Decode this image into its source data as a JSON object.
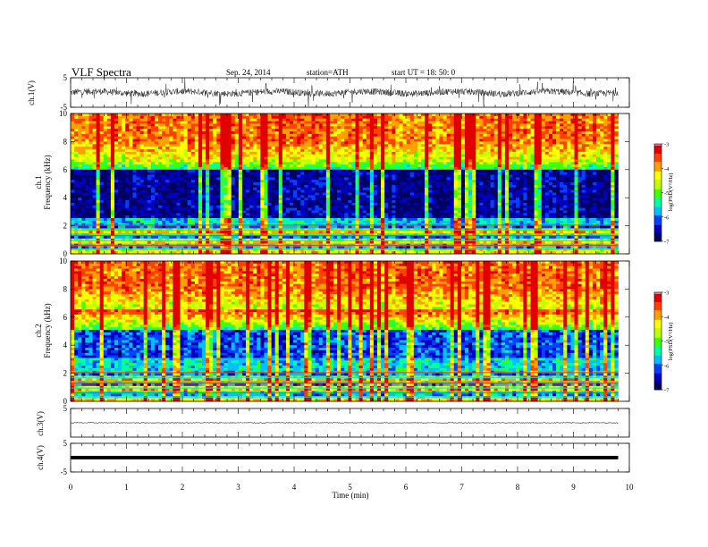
{
  "header": {
    "title": "VLF  Spectra",
    "date": "Sep. 24, 2014",
    "station": "station=ATH",
    "start": "start  UT =   18: 50: 0"
  },
  "chart_data": [
    {
      "type": "line",
      "name": "ch1-waveform",
      "ylabel": "ch.1(V)",
      "ylim": [
        -5,
        5
      ],
      "yticks": [
        5,
        -5
      ],
      "x_range": [
        0,
        9.8
      ]
    },
    {
      "type": "heatmap",
      "name": "ch1-spectrogram",
      "ylabel_top": "ch.1",
      "ylabel": "Frequency  (kHz)",
      "ylim": [
        0,
        10
      ],
      "yticks": [
        0,
        2,
        4,
        6,
        8,
        10
      ],
      "colorbar": {
        "label": "log(PSD(V²/Hz)",
        "ticks": [
          -3,
          -4,
          -5,
          -6,
          -7
        ],
        "range": [
          -7,
          -3
        ]
      },
      "x_range": [
        0,
        9.8
      ]
    },
    {
      "type": "heatmap",
      "name": "ch2-spectrogram",
      "ylabel_top": "ch.2",
      "ylabel": "Frequency  (kHz)",
      "ylim": [
        0,
        10
      ],
      "yticks": [
        0,
        2,
        4,
        6,
        8,
        10
      ],
      "colorbar": {
        "label": "log(PSD(V²/Hz)",
        "ticks": [
          -3,
          -4,
          -5,
          -6,
          -7
        ],
        "range": [
          -7,
          -3
        ]
      },
      "x_range": [
        0,
        9.8
      ]
    },
    {
      "type": "line",
      "name": "ch3-waveform",
      "ylabel": "ch.3(V)",
      "ylim": [
        -5,
        5
      ],
      "yticks": [
        5
      ],
      "baseline": 0,
      "x_range": [
        0,
        9.8
      ]
    },
    {
      "type": "line",
      "name": "ch4-waveform",
      "ylabel": "ch.4(V)",
      "ylim": [
        -5,
        5
      ],
      "yticks": [
        5,
        -5
      ],
      "baseline": 0,
      "x_range": [
        0,
        9.8
      ]
    }
  ],
  "xaxis": {
    "label": "Time  (min)",
    "ticks": [
      0,
      1,
      2,
      3,
      4,
      5,
      6,
      7,
      8,
      9,
      10
    ],
    "range": [
      0,
      10
    ]
  },
  "colors": {
    "scale": [
      "#000060",
      "#0000c0",
      "#0040ff",
      "#00c0ff",
      "#00ffa0",
      "#40ff00",
      "#c0ff00",
      "#ffff00",
      "#ffa000",
      "#ff4000",
      "#e00000",
      "#ff80b0"
    ]
  }
}
